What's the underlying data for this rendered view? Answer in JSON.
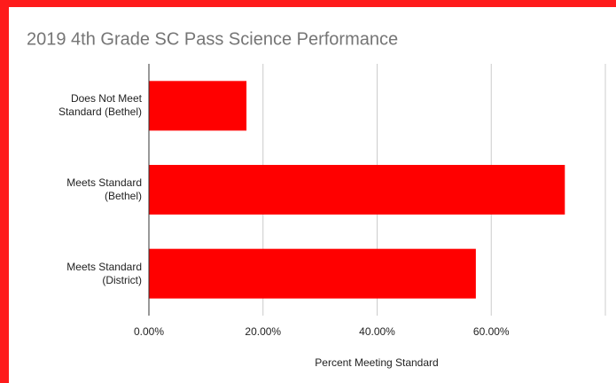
{
  "chart_data": {
    "type": "hbar",
    "title": "2019 4th Grade SC Pass Science Performance",
    "categories": [
      "Does Not Meet\nStandard (Bethel)",
      "Meets Standard\n(Bethel)",
      "Meets Standard\n(District)"
    ],
    "values": [
      17.1,
      72.9,
      57.3
    ],
    "color": "#ff0000",
    "xlim": [
      0,
      80
    ],
    "xticks": [
      {
        "value": 0,
        "label": "0.00%"
      },
      {
        "value": 20,
        "label": "20.00%"
      },
      {
        "value": 40,
        "label": "40.00%"
      },
      {
        "value": 60,
        "label": "60.00%"
      }
    ],
    "xlabel": "Percent Meeting Standard",
    "grid": true
  }
}
